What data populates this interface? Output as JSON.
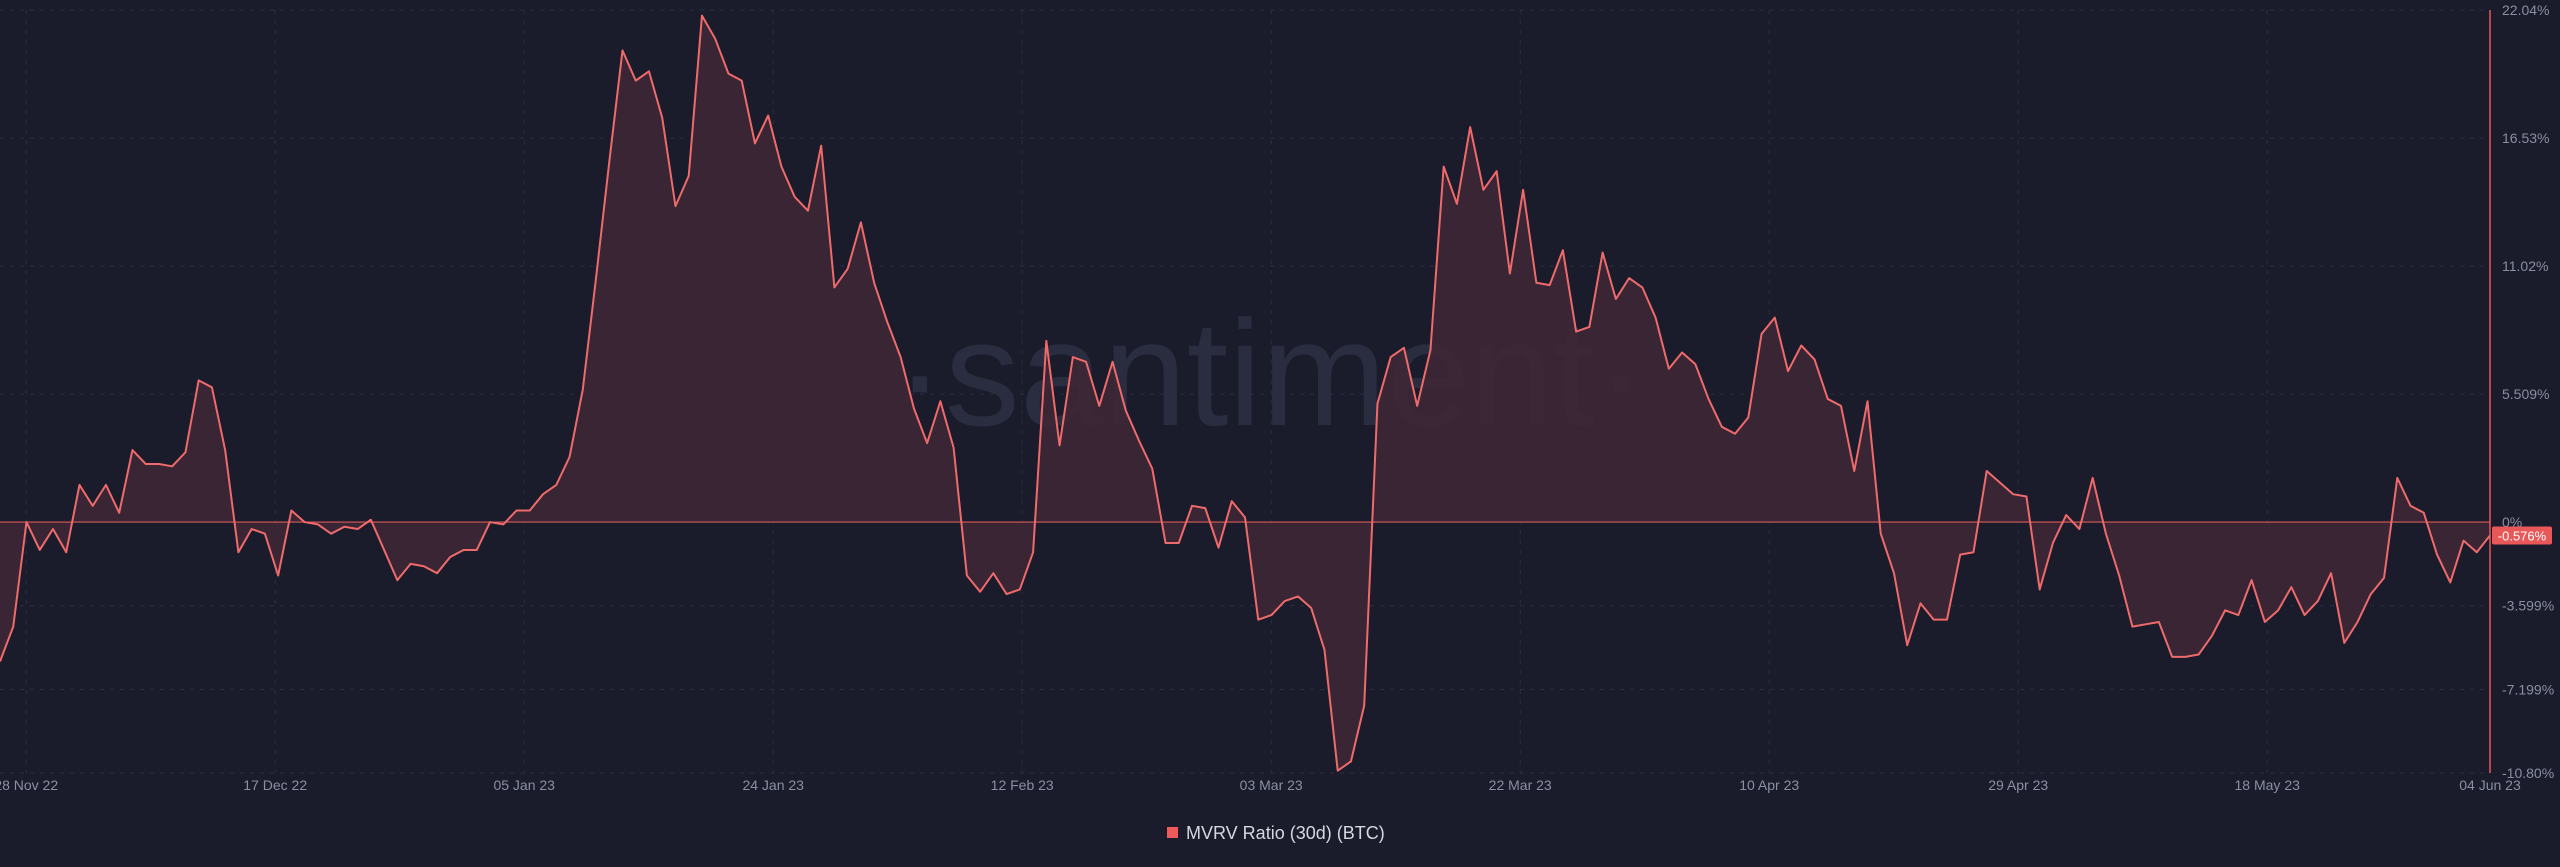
{
  "watermark": "·santiment·",
  "colors": {
    "background": "#1a1b2b",
    "line": "#ef6b6b",
    "area": "#3e2735",
    "zero_line": "#d85a5a",
    "grid": "#2c2e42",
    "badge": "#e95858"
  },
  "legend": {
    "label": "MVRV Ratio (30d) (BTC)",
    "swatch_color": "#ef5a5a"
  },
  "current_value_badge": "-0.576%",
  "chart_data": {
    "type": "area",
    "title": "",
    "xlabel": "",
    "ylabel": "",
    "legend_position": "bottom-center",
    "grid": true,
    "x_start": "2022-11-26",
    "x_end": "2023-06-04",
    "ylim": [
      -10.8,
      22.04
    ],
    "y_ticks": [
      "22.04%",
      "16.53%",
      "11.02%",
      "5.509%",
      "0%",
      "-3.599%",
      "-7.199%",
      "-10.80%"
    ],
    "y_tick_values": [
      22.04,
      16.53,
      11.02,
      5.509,
      0,
      -3.599,
      -7.199,
      -10.8
    ],
    "x_ticks": [
      "28 Nov 22",
      "17 Dec 22",
      "05 Jan 23",
      "24 Jan 23",
      "12 Feb 23",
      "03 Mar 23",
      "22 Mar 23",
      "10 Apr 23",
      "29 Apr 23",
      "18 May 23",
      "04 Jun 23"
    ],
    "x_tick_dates": [
      "2022-11-28",
      "2022-12-17",
      "2023-01-05",
      "2023-01-24",
      "2023-02-12",
      "2023-03-03",
      "2023-03-22",
      "2023-04-10",
      "2023-04-29",
      "2023-05-18",
      "2023-06-04"
    ],
    "series": [
      {
        "name": "MVRV Ratio (30d) (BTC)",
        "values": [
          -6.0,
          -4.5,
          0.0,
          -1.2,
          -0.3,
          -1.3,
          1.6,
          0.7,
          1.6,
          0.4,
          3.1,
          2.5,
          2.5,
          2.4,
          3.0,
          6.1,
          5.8,
          3.1,
          -1.3,
          -0.3,
          -0.5,
          -2.3,
          0.5,
          0.0,
          -0.1,
          -0.5,
          -0.2,
          -0.3,
          0.1,
          -1.2,
          -2.5,
          -1.8,
          -1.9,
          -2.2,
          -1.5,
          -1.2,
          -1.2,
          0.0,
          -0.1,
          0.5,
          0.5,
          1.2,
          1.6,
          2.8,
          5.7,
          10.5,
          15.5,
          20.3,
          19.0,
          19.4,
          17.4,
          13.6,
          14.9,
          21.8,
          20.8,
          19.3,
          19.0,
          16.3,
          17.5,
          15.3,
          14.0,
          13.4,
          16.2,
          10.1,
          10.9,
          12.9,
          10.3,
          8.6,
          7.1,
          4.9,
          3.4,
          5.2,
          3.2,
          -2.3,
          -3.0,
          -2.2,
          -3.1,
          -2.9,
          -1.3,
          7.8,
          3.3,
          7.1,
          6.9,
          5.0,
          6.9,
          4.8,
          3.5,
          2.3,
          -0.9,
          -0.9,
          0.7,
          0.6,
          -1.1,
          0.9,
          0.2,
          -4.2,
          -4.0,
          -3.4,
          -3.2,
          -3.7,
          -5.5,
          -10.7,
          -10.3,
          -7.9,
          5.1,
          7.1,
          7.5,
          5.0,
          7.4,
          15.3,
          13.7,
          17.0,
          14.3,
          15.1,
          10.7,
          14.3,
          10.3,
          10.2,
          11.7,
          8.2,
          8.4,
          11.6,
          9.6,
          10.5,
          10.1,
          8.8,
          6.6,
          7.3,
          6.8,
          5.3,
          4.1,
          3.8,
          4.5,
          8.1,
          8.8,
          6.5,
          7.6,
          7.0,
          5.3,
          5.0,
          2.2,
          5.2,
          -0.5,
          -2.2,
          -5.3,
          -3.5,
          -4.2,
          -4.2,
          -1.4,
          -1.3,
          2.2,
          1.7,
          1.2,
          1.1,
          -2.9,
          -0.9,
          0.3,
          -0.3,
          1.9,
          -0.5,
          -2.3,
          -4.5,
          -4.4,
          -4.3,
          -5.8,
          -5.8,
          -5.7,
          -4.9,
          -3.8,
          -4.0,
          -2.5,
          -4.3,
          -3.8,
          -2.8,
          -4.0,
          -3.4,
          -2.2,
          -5.2,
          -4.3,
          -3.1,
          -2.4,
          1.9,
          0.7,
          0.4,
          -1.4,
          -2.6,
          -0.8,
          -1.3,
          -0.576
        ]
      }
    ]
  }
}
